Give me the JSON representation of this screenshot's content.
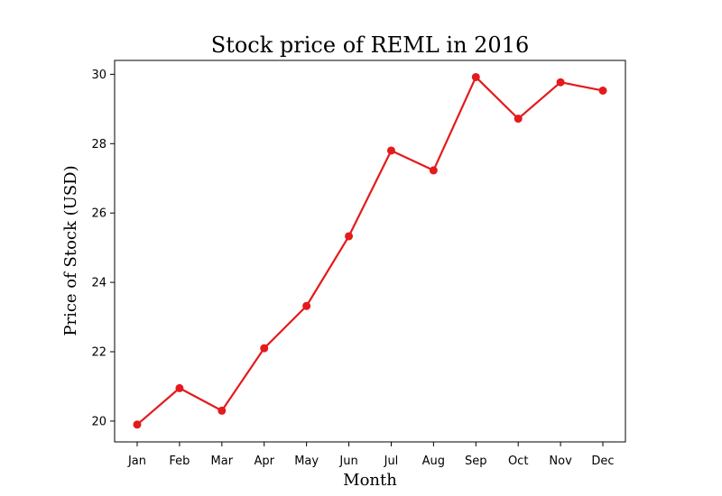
{
  "chart_data": {
    "type": "line",
    "title": "Stock price of REML in 2016",
    "xlabel": "Month",
    "ylabel": "Price of Stock (USD)",
    "categories": [
      "Jan",
      "Feb",
      "Mar",
      "Apr",
      "May",
      "Jun",
      "Jul",
      "Aug",
      "Sep",
      "Oct",
      "Nov",
      "Dec"
    ],
    "series": [
      {
        "values": [
          19.9,
          20.95,
          20.3,
          22.1,
          23.32,
          25.33,
          27.8,
          27.23,
          29.92,
          28.72,
          29.77,
          29.53
        ],
        "color": "#e41a1c"
      }
    ],
    "ylim": [
      19.4,
      30.4
    ],
    "yticks": [
      20,
      22,
      24,
      26,
      28,
      30
    ],
    "grid": false,
    "legend": "none"
  }
}
